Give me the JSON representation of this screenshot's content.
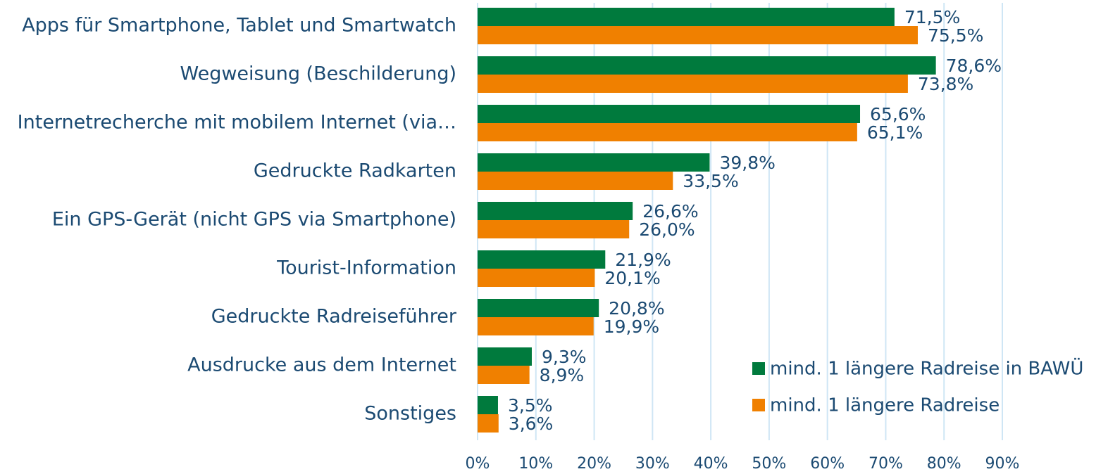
{
  "chart_data": {
    "type": "hbar",
    "categories": [
      "Apps für Smartphone, Tablet und Smartwatch",
      "Wegweisung (Beschilderung)",
      "Internetrecherche mit mobilem Internet (via…",
      "Gedruckte Radkarten",
      "Ein GPS-Gerät (nicht GPS via Smartphone)",
      "Tourist-Information",
      "Gedruckte Radreiseführer",
      "Ausdrucke aus dem Internet",
      "Sonstiges"
    ],
    "series": [
      {
        "name": "mind. 1 längere Radreise in BAWÜ",
        "color": "#007a3d",
        "values": [
          71.5,
          78.6,
          65.6,
          39.8,
          26.6,
          21.9,
          20.8,
          9.3,
          3.5
        ],
        "value_labels": [
          "71,5%",
          "78,6%",
          "65,6%",
          "39,8%",
          "26,6%",
          "21,9%",
          "20,8%",
          "9,3%",
          "3,5%"
        ]
      },
      {
        "name": "mind. 1 längere Radreise",
        "color": "#f08000",
        "values": [
          75.5,
          73.8,
          65.1,
          33.5,
          26.0,
          20.1,
          19.9,
          8.9,
          3.6
        ],
        "value_labels": [
          "75,5%",
          "73,8%",
          "65,1%",
          "33,5%",
          "26,0%",
          "20,1%",
          "19,9%",
          "8,9%",
          "3,6%"
        ]
      }
    ],
    "xlim": [
      0,
      90
    ],
    "xticks": [
      {
        "value": 0,
        "label": "0%"
      },
      {
        "value": 10,
        "label": "10%"
      },
      {
        "value": 20,
        "label": "20%"
      },
      {
        "value": 30,
        "label": "30%"
      },
      {
        "value": 40,
        "label": "40%"
      },
      {
        "value": 50,
        "label": "50%"
      },
      {
        "value": 60,
        "label": "60%"
      },
      {
        "value": 70,
        "label": "70%"
      },
      {
        "value": 80,
        "label": "80%"
      },
      {
        "value": 90,
        "label": "90%"
      }
    ],
    "grid": true,
    "grid_color": "#cfe6f5",
    "legend": "lower right"
  }
}
